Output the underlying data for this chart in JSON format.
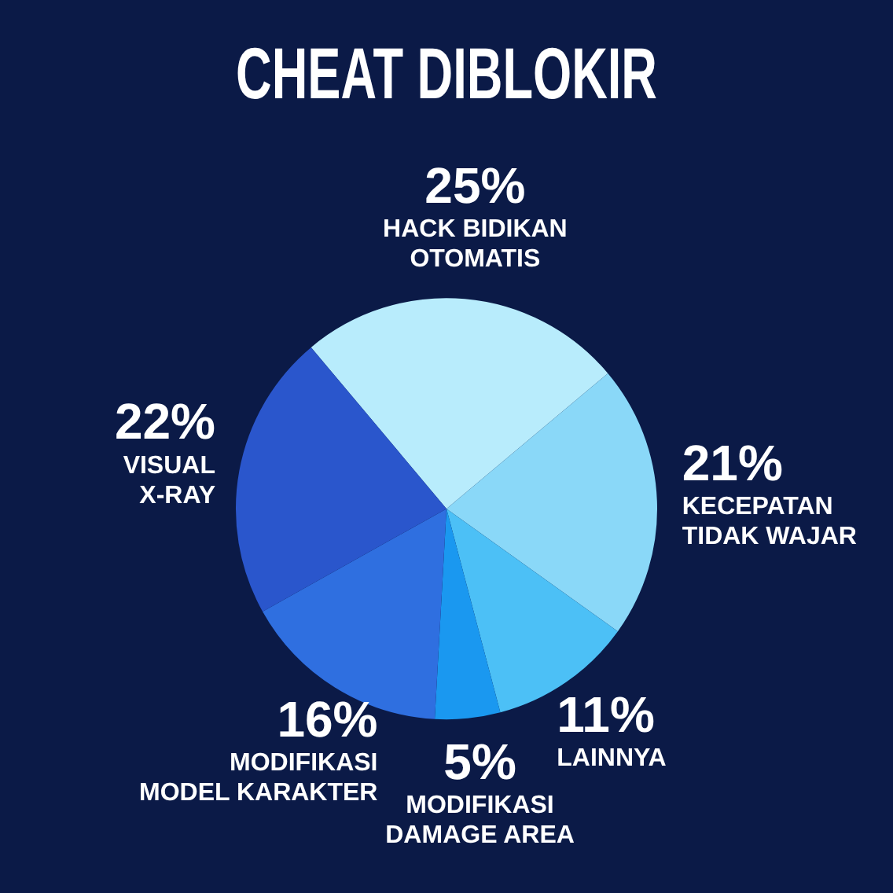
{
  "chart_data": {
    "type": "pie",
    "title": "CHEAT DIBLOKIR",
    "categories": [
      "HACK BIDIKAN OTOMATIS",
      "KECEPATAN TIDAK WAJAR",
      "LAINNYA",
      "MODIFIKASI DAMAGE AREA",
      "MODIFIKASI MODEL KARAKTER",
      "VISUAL X-RAY"
    ],
    "values": [
      25,
      21,
      11,
      5,
      16,
      22
    ],
    "colors": [
      "#b8ecfc",
      "#8ad8f8",
      "#4cc0f6",
      "#1a98f0",
      "#2f6fe0",
      "#2a56cc"
    ],
    "value_labels": [
      "25%",
      "21%",
      "11%",
      "5%",
      "16%",
      "22%"
    ]
  }
}
